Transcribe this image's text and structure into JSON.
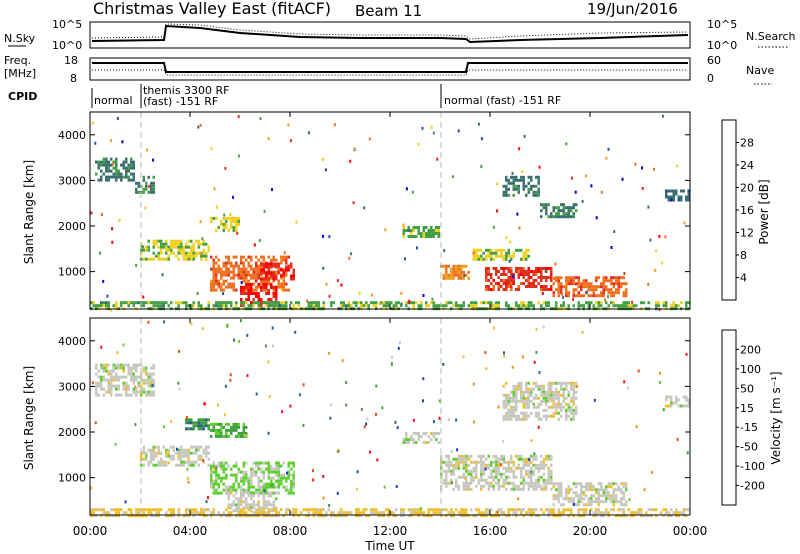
{
  "header": {
    "title": "Christmas Valley East (fitACF)",
    "beam": "Beam 11",
    "date": "19/Jun/2016"
  },
  "top_panels": {
    "nsky_label": "N.Sky",
    "nsky_ticks": [
      "10^5",
      "10^0"
    ],
    "nsearch_label": "N.Search",
    "freq_label": "Freq.",
    "freq_unit": "[MHz]",
    "freq_ticks": [
      "18",
      "8"
    ],
    "nave_label": "Nave",
    "nave_ticks": [
      "60",
      "0"
    ],
    "cpid_label": "CPID",
    "cpid_segments": [
      "normal",
      "themis 3300 RF",
      "(fast) -151 RF",
      "normal (fast) -151 RF"
    ]
  },
  "x_axis": {
    "label": "Time UT",
    "ticks": [
      "00:00",
      "04:00",
      "08:00",
      "12:00",
      "16:00",
      "20:00",
      "00:00"
    ]
  },
  "colorbars": {
    "power": {
      "label": "Power [dB]",
      "ticks": [
        "28",
        "24",
        "20",
        "16",
        "12",
        "8",
        "4"
      ]
    },
    "velocity": {
      "label": "Velocity [m s⁻¹]",
      "ticks": [
        "200",
        "100",
        "50",
        "15",
        "-15",
        "-50",
        "-100",
        "-200"
      ]
    }
  },
  "colors": {
    "power_scale": [
      "#0000dd",
      "#2850a0",
      "#3c7070",
      "#44a044",
      "#f0d020",
      "#f0a020",
      "#f07020",
      "#e03020",
      "#ff0000"
    ],
    "velocity_scale": [
      "#ff1010",
      "#f05010",
      "#f09020",
      "#f0c030",
      "#c8c8c0",
      "#60d030",
      "#40a040",
      "#306090",
      "#2040c0"
    ]
  },
  "chart_data": [
    {
      "type": "heatmap",
      "title": "Power",
      "ylabel": "Slant Range [km]",
      "xlabel": "",
      "y_ticks": [
        "4000",
        "3000",
        "2000",
        "1000"
      ],
      "x_range_hours": [
        0,
        24
      ],
      "y_range_km": [
        180,
        4500
      ],
      "color_scale": [
        0,
        30
      ],
      "regions": [
        {
          "t0": 0.2,
          "t1": 1.8,
          "r0": 3000,
          "r1": 3500,
          "v": 9
        },
        {
          "t0": 1.8,
          "t1": 2.6,
          "r0": 2750,
          "r1": 3100,
          "v": 10
        },
        {
          "t0": 2.0,
          "t1": 4.8,
          "r0": 1250,
          "r1": 1700,
          "v": 14
        },
        {
          "t0": 4.8,
          "t1": 6.0,
          "r0": 1900,
          "r1": 2200,
          "v": 14
        },
        {
          "t0": 4.8,
          "t1": 8.0,
          "r0": 600,
          "r1": 1350,
          "v": 22
        },
        {
          "t0": 6.0,
          "t1": 7.5,
          "r0": 250,
          "r1": 750,
          "v": 27
        },
        {
          "t0": 6.8,
          "t1": 8.2,
          "r0": 850,
          "r1": 1200,
          "v": 26
        },
        {
          "t0": 0,
          "t1": 24,
          "r0": 200,
          "r1": 350,
          "v": 12
        },
        {
          "t0": 14.0,
          "t1": 15.2,
          "r0": 850,
          "r1": 1150,
          "v": 20
        },
        {
          "t0": 15.2,
          "t1": 17.6,
          "r0": 1300,
          "r1": 1500,
          "v": 14
        },
        {
          "t0": 15.8,
          "t1": 18.5,
          "r0": 600,
          "r1": 1100,
          "v": 25
        },
        {
          "t0": 18.5,
          "t1": 21.5,
          "r0": 450,
          "r1": 900,
          "v": 22
        },
        {
          "t0": 12.5,
          "t1": 14.0,
          "r0": 1750,
          "r1": 2000,
          "v": 12
        },
        {
          "t0": 16.5,
          "t1": 18.0,
          "r0": 2700,
          "r1": 3100,
          "v": 9
        },
        {
          "t0": 18.0,
          "t1": 19.5,
          "r0": 2200,
          "r1": 2500,
          "v": 9
        },
        {
          "t0": 23.0,
          "t1": 24.0,
          "r0": 2600,
          "r1": 2800,
          "v": 8
        }
      ]
    },
    {
      "type": "heatmap",
      "title": "Velocity",
      "ylabel": "Slant Range [km]",
      "xlabel": "Time UT",
      "y_ticks": [
        "4000",
        "3000",
        "2000",
        "1000"
      ],
      "x_range_hours": [
        0,
        24
      ],
      "y_range_km": [
        180,
        4500
      ],
      "color_scale": [
        -250,
        250
      ],
      "regions": [
        {
          "t0": 0.2,
          "t1": 2.6,
          "r0": 2800,
          "r1": 3500,
          "v": 0
        },
        {
          "t0": 2.0,
          "t1": 4.8,
          "r0": 1300,
          "r1": 1700,
          "v": 0
        },
        {
          "t0": 3.8,
          "t1": 4.8,
          "r0": 2100,
          "r1": 2300,
          "v": 120
        },
        {
          "t0": 4.8,
          "t1": 6.2,
          "r0": 1900,
          "r1": 2200,
          "v": 100
        },
        {
          "t0": 4.8,
          "t1": 8.2,
          "r0": 650,
          "r1": 1350,
          "v": 40
        },
        {
          "t0": 5.5,
          "t1": 7.5,
          "r0": 300,
          "r1": 700,
          "v": 0
        },
        {
          "t0": 0,
          "t1": 24,
          "r0": 180,
          "r1": 330,
          "v": -40
        },
        {
          "t0": 14.0,
          "t1": 18.5,
          "r0": 750,
          "r1": 1500,
          "v": 0
        },
        {
          "t0": 18.5,
          "t1": 21.5,
          "r0": 400,
          "r1": 900,
          "v": 0
        },
        {
          "t0": 12.5,
          "t1": 14.0,
          "r0": 1750,
          "r1": 2000,
          "v": 0
        },
        {
          "t0": 16.5,
          "t1": 19.5,
          "r0": 2300,
          "r1": 3100,
          "v": 0
        },
        {
          "t0": 23.0,
          "t1": 24.0,
          "r0": 2600,
          "r1": 2800,
          "v": 0
        }
      ]
    }
  ]
}
